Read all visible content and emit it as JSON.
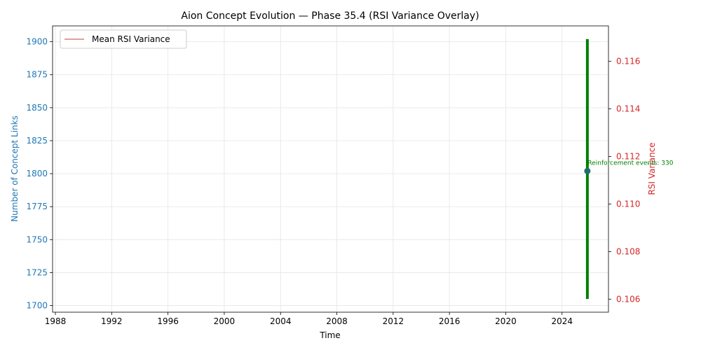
{
  "chart_data": {
    "type": "line",
    "title": "Aion Concept Evolution — Phase 35.4 (RSI Variance Overlay)",
    "xlabel": "Time",
    "ylabel_left": "Number of Concept Links",
    "ylabel_right": "RSI Variance",
    "x_ticks": [
      "1988",
      "1992",
      "1996",
      "2000",
      "2004",
      "2008",
      "2012",
      "2016",
      "2020",
      "2024"
    ],
    "xlim": [
      1987.8,
      2027.3
    ],
    "ylim_left": [
      1695,
      1912
    ],
    "ylim_right": [
      0.10545,
      0.11749
    ],
    "y_ticks_left": [
      1700,
      1725,
      1750,
      1775,
      1800,
      1825,
      1850,
      1875,
      1900
    ],
    "y_ticks_right": [
      "0.106",
      "0.108",
      "0.110",
      "0.112",
      "0.114",
      "0.116"
    ],
    "y_tick_values_right": [
      0.106,
      0.108,
      0.11,
      0.112,
      0.114,
      0.116
    ],
    "grid": true,
    "legend_position": "top-left",
    "series": [
      {
        "name": "Mean RSI Variance",
        "axis": "right",
        "color": "#e07b7b",
        "x": [
          2025.8
        ],
        "values": [
          0.1115
        ]
      }
    ],
    "concept_links_point": {
      "x": 2025.8,
      "y": 1802,
      "color": "#1f77b4"
    },
    "reinforcement_bar": {
      "x": 2025.8,
      "y_low": 1705,
      "y_high": 1902,
      "color": "#008000"
    },
    "annotation": {
      "text": "Reinforcement events: 330",
      "x": 2025.8,
      "y": 1802,
      "color": "#008000"
    },
    "colors": {
      "left_axis": "#1f77b4",
      "right_axis": "#d62728",
      "grid": "#e5e5e5",
      "point": "#1f6f6f"
    }
  }
}
